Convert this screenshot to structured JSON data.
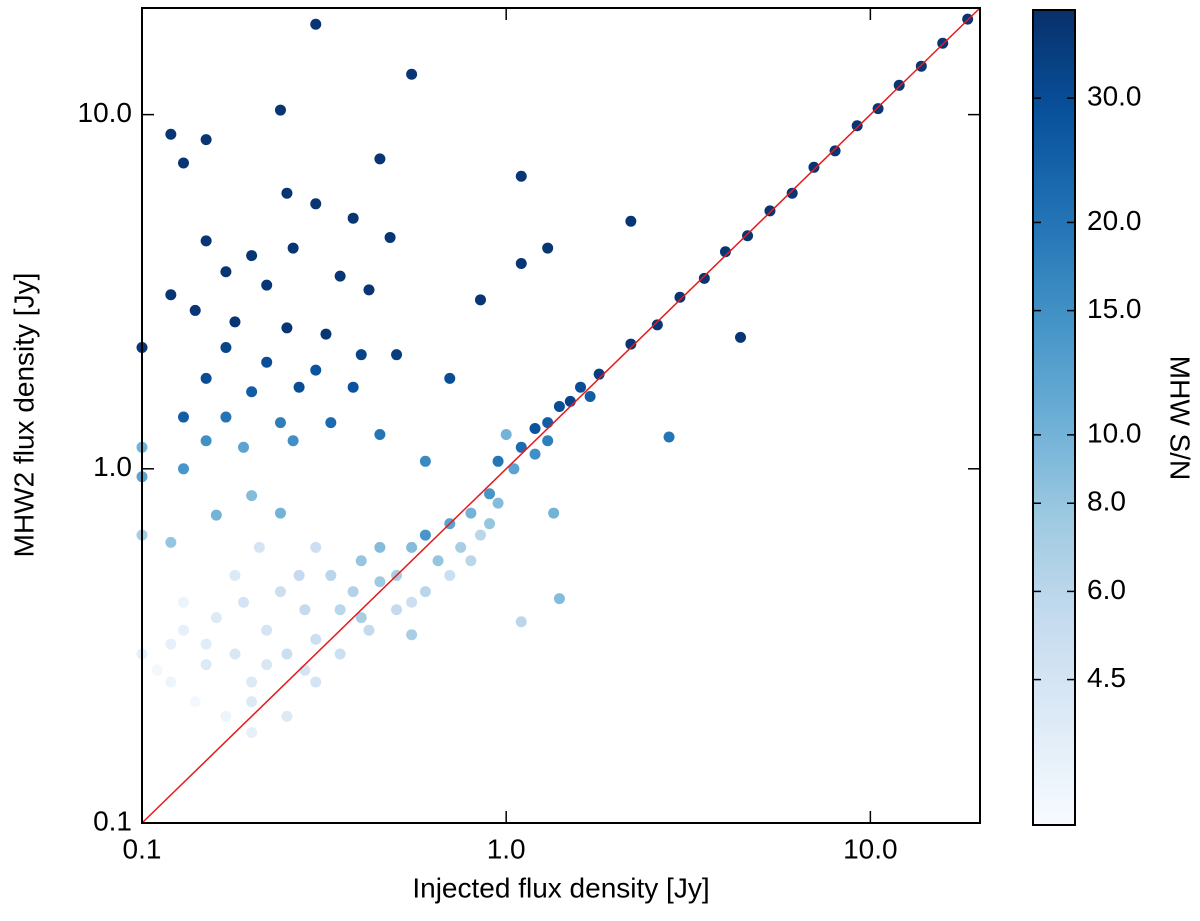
{
  "chart_data": {
    "type": "scatter",
    "x_label": "Injected flux density [Jy]",
    "y_label": "MHW2 flux density [Jy]",
    "colorbar_label": "MHW S/N",
    "log_x": true,
    "log_y": true,
    "log_color": true,
    "xlim": [
      0.1,
      20
    ],
    "ylim": [
      0.1,
      20
    ],
    "xticks": [
      0.1,
      {
        "value": 1,
        "label": "1.0"
      },
      {
        "value": 10,
        "label": "10.0"
      }
    ],
    "yticks": [
      0.1,
      {
        "value": 1,
        "label": "1.0"
      },
      {
        "value": 10,
        "label": "10.0"
      }
    ],
    "clim": [
      2.8,
      40
    ],
    "cticks": [
      {
        "value": 4.5,
        "label": "4.5"
      },
      {
        "value": 6,
        "label": "6.0"
      },
      {
        "value": 8,
        "label": "8.0"
      },
      {
        "value": 10,
        "label": "10.0"
      },
      {
        "value": 15,
        "label": "15.0"
      },
      {
        "value": 20,
        "label": "20.0"
      },
      {
        "value": 30,
        "label": "30.0"
      }
    ],
    "colormap": [
      "#f7fbff",
      "#deebf7",
      "#c6dbef",
      "#9ecae1",
      "#6baed6",
      "#4292c6",
      "#2171b5",
      "#08519c",
      "#08306b"
    ],
    "identity_line": true,
    "identity_color": "#e41a1c",
    "x": [
      2.2,
      2.6,
      3.0,
      3.5,
      4.0,
      4.6,
      5.3,
      6.1,
      7.0,
      8.0,
      9.2,
      10.5,
      12,
      13.8,
      15.8,
      18.5,
      4.4,
      1.1,
      1.2,
      1.3,
      1.4,
      1.5,
      1.6,
      1.8,
      1.2,
      1.05,
      1.3,
      0.95,
      0.9,
      1.0,
      1.7,
      2.8,
      0.8,
      0.7,
      0.6,
      0.65,
      0.75,
      0.55,
      0.85,
      0.9,
      0.5,
      0.6,
      0.7,
      0.8,
      0.55,
      0.95,
      1.1,
      1.4,
      1.35,
      0.1,
      0.12,
      0.15,
      0.13,
      0.18,
      0.2,
      0.22,
      0.25,
      0.28,
      0.3,
      0.35,
      0.4,
      0.45,
      0.3,
      0.25,
      0.2,
      0.17,
      0.14,
      0.11,
      0.12,
      0.16,
      0.19,
      0.24,
      0.27,
      0.33,
      0.38,
      0.42,
      0.35,
      0.4,
      0.45,
      0.5,
      0.22,
      0.28,
      0.15,
      0.13,
      0.18,
      0.21,
      0.3,
      0.12,
      0.2,
      0.24,
      0.16,
      0.1,
      0.55,
      0.2,
      0.3,
      0.55,
      0.24,
      0.12,
      0.15,
      0.13,
      0.45,
      1.1,
      0.25,
      0.3,
      0.38,
      2.2,
      0.48,
      0.15,
      0.2,
      0.26,
      0.17,
      0.22,
      0.35,
      0.42,
      0.12,
      0.14,
      0.18,
      0.25,
      0.32,
      0.85,
      1.3,
      1.1,
      0.1,
      0.17,
      0.22,
      0.3,
      0.4,
      0.5,
      0.15,
      0.2,
      0.27,
      0.38,
      0.7,
      0.13,
      0.17,
      0.24,
      0.33,
      0.45,
      0.15,
      0.19,
      0.26,
      0.13,
      0.6,
      0.1,
      0.1
    ],
    "values": [
      2.25,
      2.55,
      3.05,
      3.45,
      4.1,
      4.55,
      5.35,
      6.0,
      7.1,
      7.9,
      9.3,
      10.4,
      12.1,
      13.7,
      15.9,
      18.6,
      2.35,
      1.15,
      1.3,
      1.35,
      1.5,
      1.55,
      1.7,
      1.85,
      1.1,
      1.0,
      1.2,
      1.05,
      0.85,
      1.25,
      1.6,
      1.23,
      0.75,
      0.7,
      0.65,
      0.55,
      0.6,
      0.6,
      0.65,
      0.7,
      0.5,
      0.45,
      0.5,
      0.55,
      0.42,
      0.8,
      0.37,
      0.43,
      0.75,
      0.3,
      0.25,
      0.28,
      0.35,
      0.3,
      0.22,
      0.35,
      0.3,
      0.4,
      0.33,
      0.4,
      0.38,
      0.48,
      0.25,
      0.2,
      0.18,
      0.2,
      0.22,
      0.27,
      0.32,
      0.38,
      0.42,
      0.45,
      0.5,
      0.5,
      0.45,
      0.35,
      0.3,
      0.55,
      0.6,
      0.4,
      0.28,
      0.27,
      0.32,
      0.42,
      0.5,
      0.6,
      0.6,
      0.62,
      0.84,
      0.75,
      0.74,
      0.65,
      0.34,
      0.25,
      18,
      13,
      10.3,
      8.8,
      8.5,
      7.3,
      7.5,
      6.7,
      6.0,
      5.6,
      5.1,
      5.0,
      4.5,
      4.4,
      4.0,
      4.2,
      3.6,
      3.3,
      3.5,
      3.2,
      3.1,
      2.8,
      2.6,
      2.5,
      2.4,
      3.0,
      4.2,
      3.8,
      2.2,
      2.2,
      2.0,
      1.9,
      2.1,
      2.1,
      1.8,
      1.65,
      1.7,
      1.7,
      1.8,
      1.4,
      1.4,
      1.35,
      1.35,
      1.25,
      1.2,
      1.15,
      1.2,
      1.0,
      1.05,
      1.15,
      0.95
    ],
    "color_values": [
      38,
      38,
      38,
      38,
      38,
      38,
      38,
      38,
      38,
      38,
      38,
      38,
      38,
      38,
      38,
      38,
      38,
      22,
      28,
      25,
      30,
      33,
      30,
      35,
      15,
      12,
      18,
      20,
      14,
      10,
      25,
      20,
      10,
      12,
      14,
      8,
      7,
      9,
      6,
      8,
      7,
      6,
      5,
      6,
      5,
      9,
      6,
      9,
      10,
      3.5,
      3.2,
      4,
      3.5,
      4.2,
      4,
      4.5,
      5,
      5.5,
      5,
      6,
      7,
      7.5,
      4.5,
      4,
      3.5,
      3.2,
      3,
      3,
      3.5,
      4,
      4.5,
      5,
      5.5,
      6,
      6.5,
      5.5,
      5,
      8,
      9,
      5.5,
      4.2,
      4.5,
      3.8,
      3.3,
      4,
      4.5,
      5,
      8,
      9,
      10,
      10,
      7,
      7,
      4,
      38,
      38,
      38,
      38,
      38,
      38,
      38,
      38,
      38,
      38,
      38,
      38,
      38,
      38,
      38,
      38,
      38,
      38,
      38,
      38,
      38,
      38,
      38,
      38,
      38,
      38,
      38,
      38,
      38,
      32,
      30,
      28,
      33,
      35,
      30,
      25,
      30,
      28,
      30,
      25,
      20,
      18,
      22,
      20,
      15,
      12,
      15,
      14,
      16,
      10,
      12
    ]
  }
}
